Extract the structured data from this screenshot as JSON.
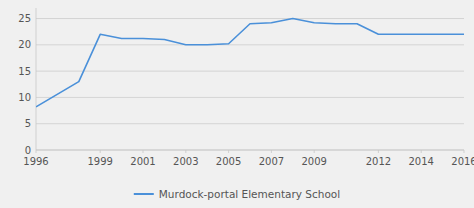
{
  "chart_data": {
    "type": "line",
    "x": [
      1996,
      1998,
      1999,
      2000,
      2001,
      2002,
      2003,
      2004,
      2005,
      2006,
      2007,
      2008,
      2009,
      2010,
      2011,
      2012,
      2013,
      2014,
      2015,
      2016
    ],
    "series": [
      {
        "name": "Murdock-portal Elementary School",
        "color": "#4a90d9",
        "values": [
          8.2,
          13.0,
          22.0,
          21.2,
          21.2,
          21.0,
          20.0,
          20.0,
          20.2,
          24.0,
          24.2,
          25.0,
          24.2,
          24.0,
          24.0,
          22.0,
          22.0,
          22.0,
          22.0,
          22.0
        ]
      }
    ],
    "xlim": [
      1996,
      2016
    ],
    "xticks": [
      1996,
      1999,
      2001,
      2003,
      2005,
      2007,
      2009,
      2012,
      2014,
      2016
    ],
    "ylim": [
      0,
      27
    ],
    "yticks": [
      0,
      5,
      10,
      15,
      20,
      25
    ],
    "grid": true,
    "legend": "bottom"
  }
}
